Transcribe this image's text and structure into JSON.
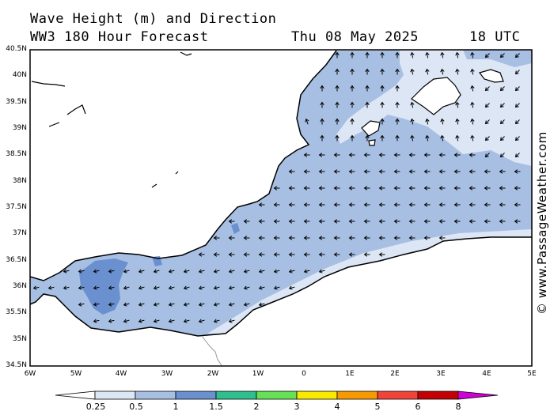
{
  "header": {
    "title": "Wave Height (m) and Direction",
    "subtitle": "WW3 180 Hour Forecast",
    "date": "Thu 08 May 2025",
    "time": "18 UTC"
  },
  "credit": "© www.PassageWeather.com",
  "map": {
    "lat_labels": [
      "40.5N",
      "40N",
      "39.5N",
      "39N",
      "38.5N",
      "38N",
      "37.5N",
      "37N",
      "36.5N",
      "36N",
      "35.5N",
      "35N",
      "34.5N"
    ],
    "lon_labels": [
      "6W",
      "5W",
      "4W",
      "3W",
      "2W",
      "1W",
      "0",
      "1E",
      "2E",
      "3E",
      "4E",
      "5E"
    ],
    "sea_fill_color": "#a6bfe3",
    "light_wave_color": "#dde6f5",
    "high_wave_color": "#6a90d0",
    "land_color": "#ffffff"
  },
  "colorbar": {
    "labels": [
      "0.25",
      "0.5",
      "1",
      "1.5",
      "2",
      "3",
      "4",
      "5",
      "6",
      "8"
    ],
    "colors": [
      "#ffffff",
      "#dde6f5",
      "#a6bfe3",
      "#6a90d0",
      "#2fbf8f",
      "#66e055",
      "#f7ea00",
      "#f79a00",
      "#f2433a",
      "#c40005",
      "#d000d8"
    ]
  }
}
